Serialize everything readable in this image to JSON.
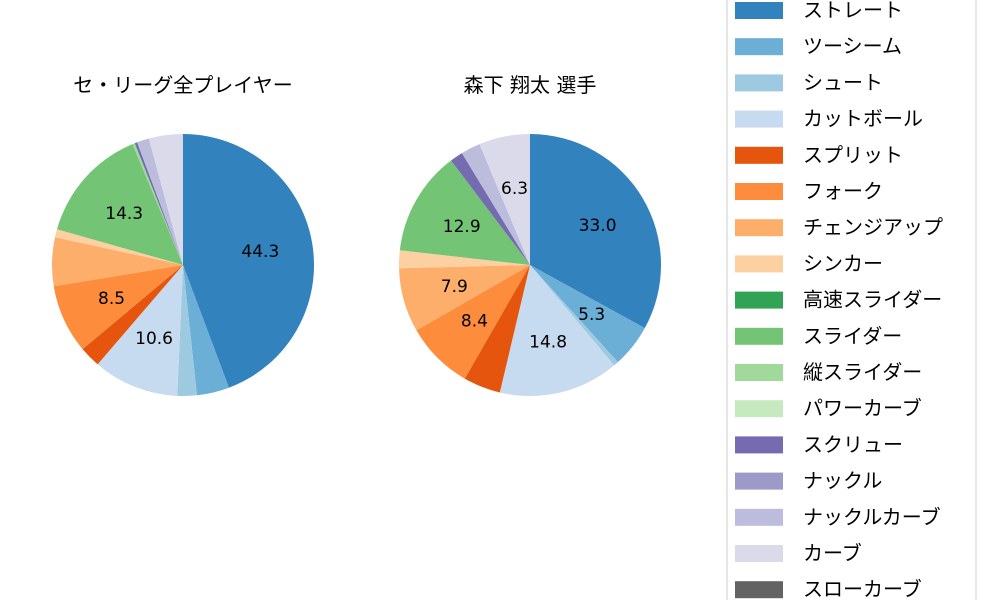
{
  "chart_data": [
    {
      "type": "pie",
      "title": "セ・リーグ全プレイヤー",
      "slices": [
        {
          "label": "ストレート",
          "value": 44.3,
          "shown": "44.3"
        },
        {
          "label": "ツーシーム",
          "value": 4.0
        },
        {
          "label": "シュート",
          "value": 2.4
        },
        {
          "label": "カットボール",
          "value": 10.6,
          "shown": "10.6"
        },
        {
          "label": "スプリット",
          "value": 2.6
        },
        {
          "label": "フォーク",
          "value": 8.5,
          "shown": "8.5"
        },
        {
          "label": "チェンジアップ",
          "value": 6.0
        },
        {
          "label": "シンカー",
          "value": 1.0
        },
        {
          "label": "スライダー",
          "value": 14.3,
          "shown": "14.3"
        },
        {
          "label": "縦スライダー",
          "value": 0.3
        },
        {
          "label": "スクリュー",
          "value": 0.3
        },
        {
          "label": "ナックルカーブ",
          "value": 1.5
        },
        {
          "label": "カーブ",
          "value": 4.2
        }
      ]
    },
    {
      "type": "pie",
      "title": "森下 翔太  選手",
      "slices": [
        {
          "label": "ストレート",
          "value": 33.0,
          "shown": "33.0"
        },
        {
          "label": "ツーシーム",
          "value": 5.3,
          "shown": "5.3"
        },
        {
          "label": "シュート",
          "value": 0.6
        },
        {
          "label": "カットボール",
          "value": 14.8,
          "shown": "14.8"
        },
        {
          "label": "スプリット",
          "value": 4.6
        },
        {
          "label": "フォーク",
          "value": 8.4,
          "shown": "8.4"
        },
        {
          "label": "チェンジアップ",
          "value": 7.9,
          "shown": "7.9"
        },
        {
          "label": "シンカー",
          "value": 2.2
        },
        {
          "label": "スライダー",
          "value": 12.9,
          "shown": "12.9"
        },
        {
          "label": "スクリュー",
          "value": 1.6
        },
        {
          "label": "ナックルカーブ",
          "value": 2.4
        },
        {
          "label": "カーブ",
          "value": 6.3,
          "shown": "6.3"
        }
      ]
    }
  ],
  "legend": [
    {
      "label": "ストレート",
      "color": "#3182bd"
    },
    {
      "label": "ツーシーム",
      "color": "#6baed6"
    },
    {
      "label": "シュート",
      "color": "#9ecae1"
    },
    {
      "label": "カットボール",
      "color": "#c6dbef"
    },
    {
      "label": "スプリット",
      "color": "#e6550d"
    },
    {
      "label": "フォーク",
      "color": "#fd8d3c"
    },
    {
      "label": "チェンジアップ",
      "color": "#fdae6b"
    },
    {
      "label": "シンカー",
      "color": "#fdd0a2"
    },
    {
      "label": "高速スライダー",
      "color": "#31a354"
    },
    {
      "label": "スライダー",
      "color": "#74c476"
    },
    {
      "label": "縦スライダー",
      "color": "#a1d99b"
    },
    {
      "label": "パワーカーブ",
      "color": "#c7e9c0"
    },
    {
      "label": "スクリュー",
      "color": "#756bb1"
    },
    {
      "label": "ナックル",
      "color": "#9e9ac8"
    },
    {
      "label": "ナックルカーブ",
      "color": "#bcbddc"
    },
    {
      "label": "カーブ",
      "color": "#dadaeb"
    },
    {
      "label": "スローカーブ",
      "color": "#636363"
    }
  ]
}
